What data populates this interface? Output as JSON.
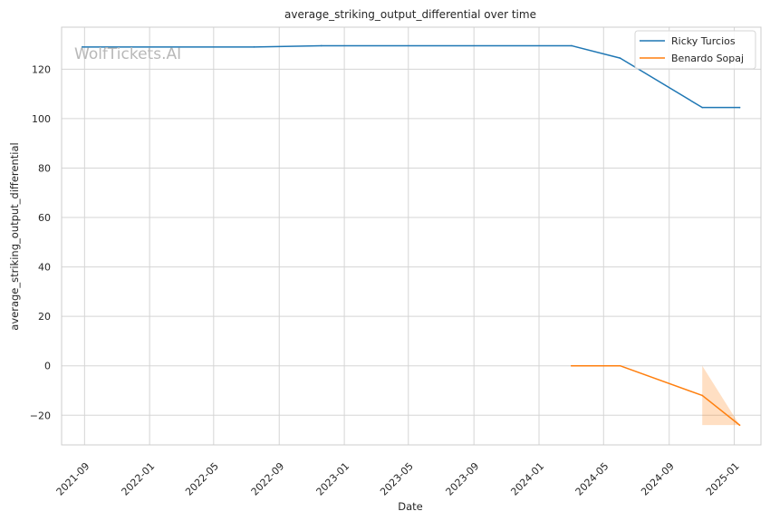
{
  "chart_data": {
    "type": "line",
    "title": "average_striking_output_differential over time",
    "xlabel": "Date",
    "ylabel": "average_striking_output_differential",
    "watermark": "WolfTickets.AI",
    "x_ticks": [
      "2021-09",
      "2022-01",
      "2022-05",
      "2022-09",
      "2023-01",
      "2023-05",
      "2023-09",
      "2024-01",
      "2024-05",
      "2024-09",
      "2025-01"
    ],
    "y_ticks": [
      -20,
      0,
      20,
      40,
      60,
      80,
      100,
      120
    ],
    "y_tick_labels": [
      "−20",
      "0",
      "20",
      "40",
      "60",
      "80",
      "100",
      "120"
    ],
    "xlim": [
      "2021-07-20",
      "2025-02-20"
    ],
    "ylim": [
      -32,
      137
    ],
    "grid": true,
    "legend_position": "top-right",
    "series": [
      {
        "name": "Ricky Turcios",
        "color": "#1f77b4",
        "points": [
          {
            "x": "2021-08-28",
            "y": 129
          },
          {
            "x": "2022-07-16",
            "y": 129
          },
          {
            "x": "2022-11-19",
            "y": 129.5
          },
          {
            "x": "2024-03-02",
            "y": 129.5
          },
          {
            "x": "2024-06-01",
            "y": 124.5
          },
          {
            "x": "2024-11-02",
            "y": 104.5
          },
          {
            "x": "2025-01-11",
            "y": 104.5
          }
        ]
      },
      {
        "name": "Benardo Sopaj",
        "color": "#ff7f0e",
        "points": [
          {
            "x": "2024-03-02",
            "y": 0
          },
          {
            "x": "2024-06-01",
            "y": 0
          },
          {
            "x": "2024-11-02",
            "y": -12
          },
          {
            "x": "2025-01-11",
            "y": -24
          }
        ],
        "confidence_band": [
          {
            "x": "2024-11-02",
            "low": -24,
            "high": 0
          },
          {
            "x": "2025-01-11",
            "low": -24,
            "high": -24
          }
        ]
      }
    ]
  }
}
